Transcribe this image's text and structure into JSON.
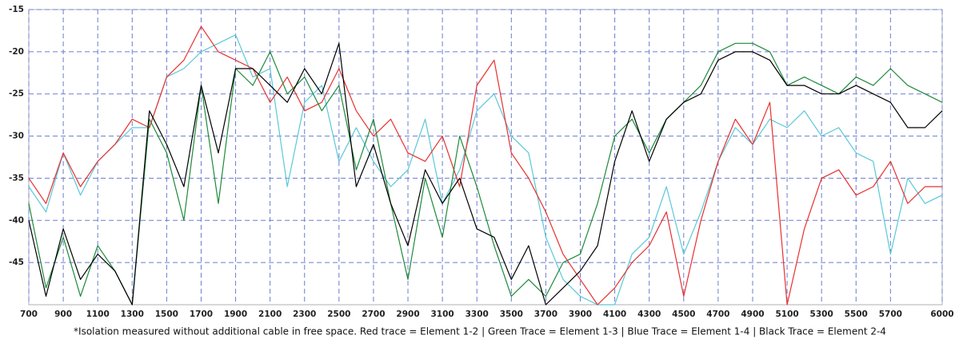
{
  "chart_data": {
    "type": "line",
    "caption": "*Isolation measured without additional cable in free space. Red trace = Element 1-2 | Green Trace = Element 1-3 | Blue Trace = Element 1-4 | Black Trace = Element 2-4",
    "x": [
      700,
      800,
      900,
      1000,
      1100,
      1200,
      1300,
      1400,
      1500,
      1600,
      1700,
      1800,
      1900,
      2000,
      2100,
      2200,
      2300,
      2400,
      2500,
      2600,
      2700,
      2800,
      2900,
      3000,
      3100,
      3200,
      3300,
      3400,
      3500,
      3600,
      3700,
      3800,
      3900,
      4000,
      4100,
      4200,
      4300,
      4400,
      4500,
      4600,
      4700,
      4800,
      4900,
      5000,
      5100,
      5200,
      5300,
      5400,
      5500,
      5600,
      5700,
      5800,
      5900,
      6000
    ],
    "series": [
      {
        "color": "#5bc8d8",
        "values": [
          -36,
          -39,
          -32,
          -37,
          -33,
          -31,
          -29,
          -29,
          -23,
          -22,
          -20,
          -19,
          -18,
          -23,
          -22,
          -36,
          -26,
          -24,
          -33,
          -29,
          -33,
          -36,
          -34,
          -28,
          -38,
          -34,
          -27,
          -25,
          -30,
          -32,
          -42,
          -47,
          -49,
          -50,
          -50,
          -44,
          -42,
          -36,
          -44,
          -39,
          -33,
          -29,
          -31,
          -28,
          -29,
          -27,
          -30,
          -29,
          -32,
          -33,
          -44,
          -35,
          -38,
          -37
        ]
      },
      {
        "color": "#e8302e",
        "values": [
          -35,
          -38,
          -32,
          -36,
          -33,
          -31,
          -28,
          -29,
          -23,
          -21,
          -17,
          -20,
          -21,
          -22,
          -26,
          -23,
          -27,
          -26,
          -22,
          -27,
          -30,
          -28,
          -32,
          -33,
          -30,
          -36,
          -24,
          -21,
          -32,
          -35,
          -39,
          -44,
          -47,
          -50,
          -48,
          -45,
          -43,
          -39,
          -49,
          -40,
          -33,
          -28,
          -31,
          -26,
          -50,
          -41,
          -35,
          -34,
          -37,
          -36,
          -33,
          -38,
          -36,
          -36
        ]
      },
      {
        "color": "#1e8a3a",
        "values": [
          -38,
          -48,
          -42,
          -49,
          -43,
          -46,
          -50,
          -28,
          -32,
          -40,
          -24,
          -38,
          -22,
          -24,
          -20,
          -25,
          -23,
          -27,
          -24,
          -34,
          -28,
          -38,
          -47,
          -35,
          -42,
          -30,
          -36,
          -43,
          -49,
          -47,
          -49,
          -45,
          -44,
          -38,
          -30,
          -28,
          -32,
          -28,
          -26,
          -24,
          -20,
          -19,
          -19,
          -20,
          -24,
          -23,
          -24,
          -25,
          -23,
          -24,
          -22,
          -24,
          -25,
          -26
        ]
      },
      {
        "color": "#000000",
        "values": [
          -40,
          -49,
          -41,
          -47,
          -44,
          -46,
          -50,
          -27,
          -31,
          -36,
          -24,
          -32,
          -22,
          -22,
          -24,
          -26,
          -22,
          -25,
          -19,
          -36,
          -31,
          -38,
          -43,
          -34,
          -38,
          -35,
          -41,
          -42,
          -47,
          -43,
          -50,
          -48,
          -46,
          -43,
          -33,
          -27,
          -33,
          -28,
          -26,
          -25,
          -21,
          -20,
          -20,
          -21,
          -24,
          -24,
          -25,
          -25,
          -24,
          -25,
          -26,
          -29,
          -29,
          -27
        ]
      }
    ],
    "xlim": [
      700,
      6000
    ],
    "xticks": [
      700,
      900,
      1100,
      1300,
      1500,
      1700,
      1900,
      2100,
      2300,
      2500,
      2700,
      2900,
      3100,
      3300,
      3500,
      3700,
      3900,
      4100,
      4300,
      4500,
      4700,
      4900,
      5100,
      5300,
      5500,
      5700,
      6000
    ],
    "ylim": [
      -50,
      -15
    ],
    "yticks": [
      -45,
      -40,
      -35,
      -30,
      -25,
      -20,
      -15
    ],
    "grid": true,
    "grid_color": "#6b7bd0"
  }
}
